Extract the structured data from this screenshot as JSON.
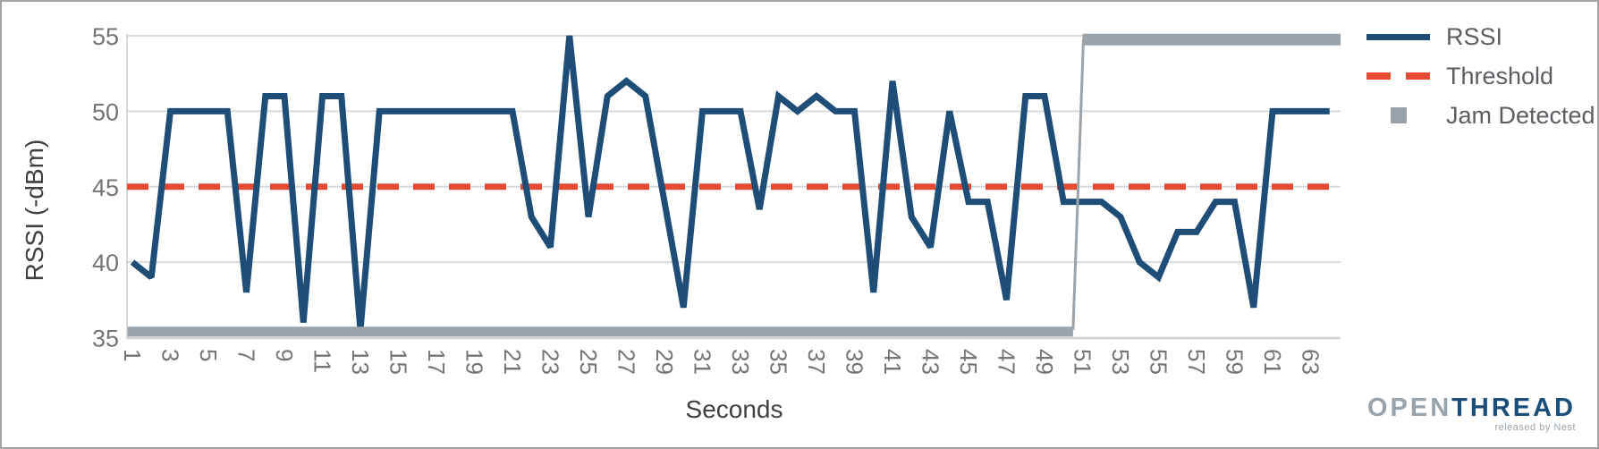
{
  "chart_data": {
    "type": "line",
    "title": "",
    "xlabel": "Seconds",
    "ylabel": "RSSI (-dBm)",
    "ylim": [
      35,
      55
    ],
    "x_range": [
      0,
      65
    ],
    "grid": "horizontal",
    "legend_position": "right-top",
    "yticks": [
      35,
      40,
      45,
      50,
      55
    ],
    "xticks": [
      1,
      3,
      5,
      7,
      9,
      11,
      13,
      15,
      17,
      19,
      21,
      23,
      25,
      27,
      29,
      31,
      33,
      35,
      37,
      39,
      41,
      43,
      45,
      47,
      49,
      51,
      53,
      55,
      57,
      59,
      61,
      63
    ],
    "x": [
      1,
      2,
      3,
      4,
      5,
      6,
      7,
      8,
      9,
      10,
      11,
      12,
      13,
      14,
      15,
      16,
      17,
      18,
      19,
      20,
      21,
      22,
      23,
      24,
      25,
      26,
      27,
      28,
      29,
      30,
      31,
      32,
      33,
      34,
      35,
      36,
      37,
      38,
      39,
      40,
      41,
      42,
      43,
      44,
      45,
      46,
      47,
      48,
      49,
      50,
      51,
      52,
      53,
      54,
      55,
      56,
      57,
      58,
      59,
      60,
      61,
      62,
      63,
      64
    ],
    "series": [
      {
        "name": "RSSI",
        "type": "line",
        "style": "solid",
        "color": "#1e4e78",
        "values": [
          40,
          39,
          50,
          50,
          50,
          50,
          38,
          51,
          51,
          36,
          51,
          51,
          35.5,
          50,
          50,
          50,
          50,
          50,
          50,
          50,
          50,
          43,
          41,
          55,
          43,
          51,
          52,
          51,
          44,
          37,
          50,
          50,
          50,
          43.5,
          51,
          50,
          51,
          50,
          50,
          38,
          52,
          43,
          41,
          50,
          44,
          44,
          37.5,
          51,
          51,
          44,
          44,
          44,
          43,
          40,
          39,
          42,
          42,
          44,
          44,
          37,
          50,
          50,
          50,
          50
        ]
      },
      {
        "name": "Threshold",
        "type": "line",
        "style": "dashed",
        "color": "#e64a33",
        "value": 45
      },
      {
        "name": "Jam Detected",
        "type": "status-band",
        "color": "#9aa3aa",
        "low_value": 35.4,
        "high_value": 54.75,
        "low_x": [
          0.75,
          50.5
        ],
        "high_x": [
          51,
          64.6
        ]
      }
    ],
    "tick_color": "#757575",
    "gridline_color": "#d8dadc"
  },
  "branding": {
    "logo_open": "OPEN",
    "logo_thread": "THREAD",
    "tagline": "released by Nest"
  }
}
